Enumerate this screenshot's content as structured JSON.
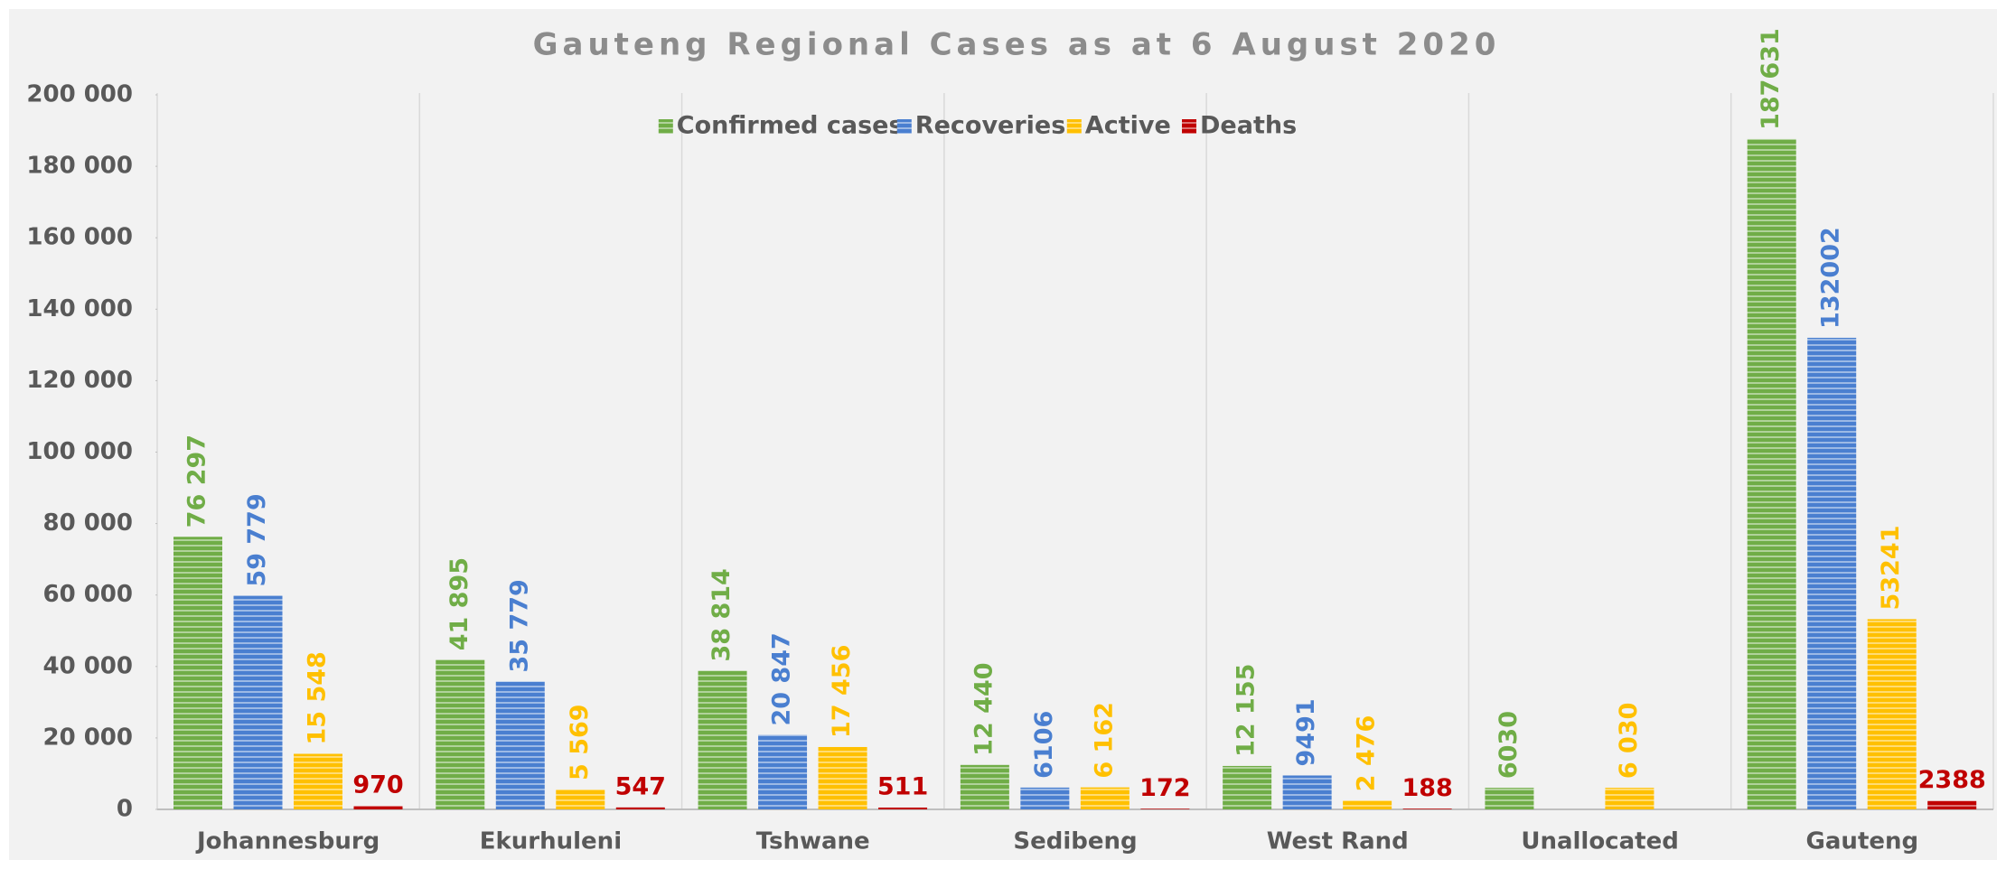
{
  "chart_data": {
    "type": "bar",
    "title": "Gauteng Regional Cases as at 6 August 2020",
    "categories": [
      "Johannesburg",
      "Ekurhuleni",
      "Tshwane",
      "Sedibeng",
      "West Rand",
      "Unallocated",
      "Gauteng"
    ],
    "series": [
      {
        "name": "Confirmed cases",
        "color": "#70ad47",
        "values": [
          76297,
          41895,
          38814,
          12440,
          12155,
          6030,
          187631
        ],
        "value_labels": [
          "76 297",
          "41 895",
          "38 814",
          "12 440",
          "12 155",
          "6030",
          "187631"
        ]
      },
      {
        "name": "Recoveries",
        "color": "#4a7fd0",
        "values": [
          59779,
          35779,
          20847,
          6106,
          9491,
          null,
          132002
        ],
        "value_labels": [
          "59 779",
          "35 779",
          "20 847",
          "6106",
          "9491",
          null,
          "132002"
        ]
      },
      {
        "name": "Active",
        "color": "#ffc000",
        "values": [
          15548,
          5569,
          17456,
          6162,
          2476,
          6030,
          53241
        ],
        "value_labels": [
          "15 548",
          "5 569",
          "17 456",
          "6 162",
          "2 476",
          "6 030",
          "53241"
        ]
      },
      {
        "name": "Deaths",
        "color": "#c00000",
        "values": [
          970,
          547,
          511,
          172,
          188,
          null,
          2388
        ],
        "value_labels": [
          "970",
          "547",
          "511",
          "172",
          "188",
          null,
          "2388"
        ]
      }
    ],
    "ylim": [
      0,
      200000
    ],
    "yticks": [
      0,
      {
        "value": 20000,
        "label": "20 000"
      },
      {
        "value": 40000,
        "label": "40 000"
      },
      {
        "value": 60000,
        "label": "60 000"
      },
      {
        "value": 80000,
        "label": "80 000"
      },
      {
        "value": 100000,
        "label": "100 000"
      },
      {
        "value": 120000,
        "label": "120 000"
      },
      {
        "value": 140000,
        "label": "140 000"
      },
      {
        "value": 160000,
        "label": "160 000"
      },
      {
        "value": 180000,
        "label": "180 000"
      },
      {
        "value": 200000,
        "label": "200 000"
      }
    ],
    "legend": "top"
  }
}
